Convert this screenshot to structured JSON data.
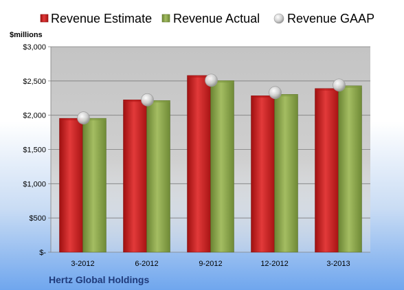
{
  "chart_data": {
    "type": "bar",
    "title": "",
    "unit_label": "$millions",
    "company": "Hertz Global Holdings",
    "categories": [
      "3-2012",
      "6-2012",
      "9-2012",
      "12-2012",
      "3-2013"
    ],
    "series": [
      {
        "name": "Revenue Estimate",
        "type": "bar",
        "values": [
          1955,
          2225,
          2580,
          2285,
          2390
        ]
      },
      {
        "name": "Revenue Actual",
        "type": "bar",
        "values": [
          1955,
          2215,
          2505,
          2305,
          2430
        ]
      },
      {
        "name": "Revenue GAAP",
        "type": "point",
        "values": [
          1960,
          2225,
          2510,
          2330,
          2440
        ]
      }
    ],
    "yticks": [
      {
        "value": 0,
        "label": "$-"
      },
      {
        "value": 500,
        "label": "$500"
      },
      {
        "value": 1000,
        "label": "$1,000"
      },
      {
        "value": 1500,
        "label": "$1,500"
      },
      {
        "value": 2000,
        "label": "$2,000"
      },
      {
        "value": 2500,
        "label": "$2,500"
      },
      {
        "value": 3000,
        "label": "$3,000"
      }
    ],
    "ylim": [
      0,
      3000
    ],
    "grid": true,
    "legend_position": "top",
    "colors": {
      "estimate": "#d42a2a",
      "actual": "#8da84c",
      "gaap": "#c7c7c7",
      "company_text": "#1f3a7a"
    }
  }
}
